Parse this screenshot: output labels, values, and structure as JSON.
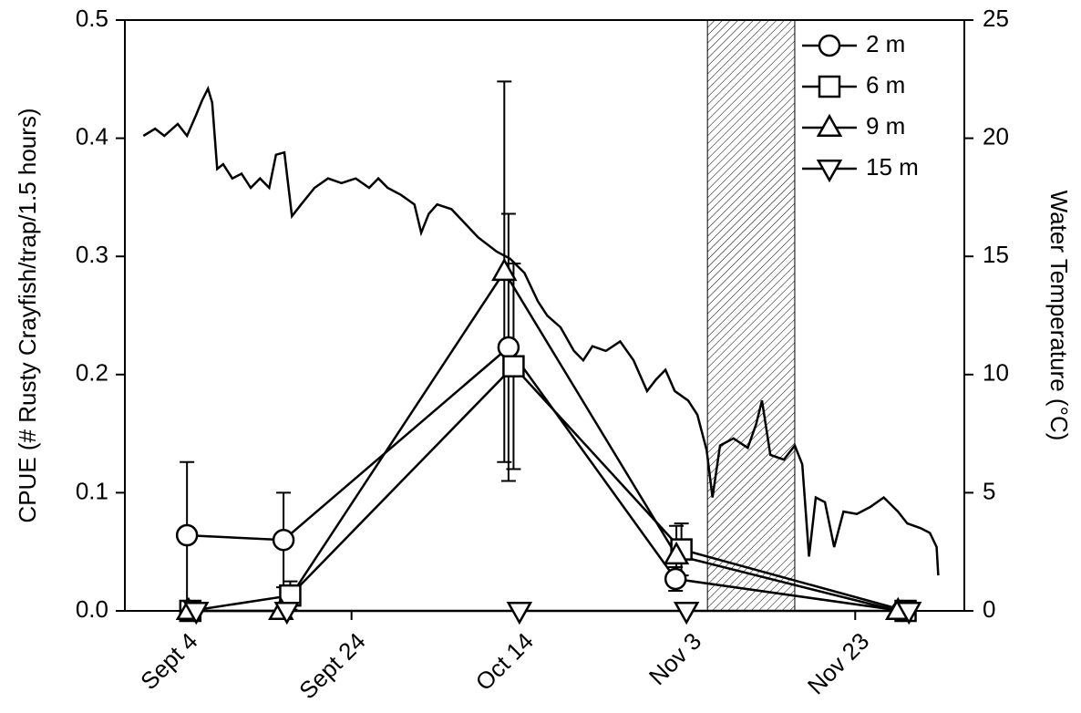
{
  "chart_data": {
    "type": "line",
    "y_label": "CPUE (# Rusty Crayfish/trap/1.5 hours)",
    "y2_label": "Water Temperature (°C)",
    "xlim": [
      240,
      340
    ],
    "xticks": [
      {
        "value": 247,
        "label": "Sept 4"
      },
      {
        "value": 267,
        "label": "Sept 24"
      },
      {
        "value": 287,
        "label": "Oct 14"
      },
      {
        "value": 307,
        "label": "Nov 3"
      },
      {
        "value": 327,
        "label": "Nov 23"
      }
    ],
    "ylim": [
      0,
      0.5
    ],
    "yticks": [
      {
        "value": 0,
        "label": "0.0"
      },
      0.1,
      0.2,
      0.3,
      0.4,
      0.5
    ],
    "y2lim": [
      0,
      25
    ],
    "y2ticks": [
      0,
      5,
      10,
      15,
      20,
      25
    ],
    "shaded_xrange": [
      309.4,
      319.8
    ],
    "legend": "upper right",
    "series": [
      {
        "name": "2 m",
        "marker": "circle",
        "color": "#000000",
        "x": [
          247.4,
          258.9,
          285.7,
          305.6,
          332.6
        ],
        "values": [
          0.064,
          0.06,
          0.223,
          0.027,
          0
        ],
        "errors": [
          0.062,
          0.04,
          0.113,
          0.01,
          null
        ]
      },
      {
        "name": "6 m",
        "marker": "square",
        "color": "#000000",
        "x": [
          247.8,
          259.7,
          286.3,
          306.3,
          333.0
        ],
        "values": [
          0,
          0.013,
          0.207,
          0.052,
          0
        ],
        "errors": [
          null,
          0.012,
          0.087,
          0.022,
          null
        ]
      },
      {
        "name": "9 m",
        "marker": "triangle-up",
        "color": "#000000",
        "x": [
          247.6,
          258.6,
          285.2,
          305.7,
          332.1
        ],
        "values": [
          0,
          0,
          0.287,
          0.047,
          0
        ],
        "errors": [
          null,
          null,
          0.161,
          0.025,
          null
        ]
      },
      {
        "name": "15 m",
        "marker": "triangle-down",
        "color": "#000000",
        "x": [
          248.5,
          259.3,
          287.0,
          306.9,
          333.4
        ],
        "values": [
          0,
          0,
          0,
          0,
          0
        ],
        "errors": [
          null,
          null,
          null,
          null,
          null
        ]
      }
    ],
    "temperature": {
      "axis": "y2",
      "color": "#000000",
      "x": [
        242.2,
        243.6,
        244.7,
        246.3,
        247.4,
        248.5,
        249.2,
        249.9,
        250.4,
        251.0,
        251.7,
        252.8,
        253.9,
        255.0,
        256.1,
        257.2,
        258.0,
        259.0,
        259.9,
        261.0,
        262.6,
        264.2,
        265.8,
        267.5,
        269.1,
        270.2,
        271.3,
        272.9,
        274.5,
        275.3,
        276.2,
        277.2,
        278.9,
        280.5,
        282.1,
        284.3,
        285.9,
        287.6,
        289.2,
        290.3,
        291.9,
        293.5,
        294.6,
        295.7,
        297.3,
        299.0,
        300.6,
        302.2,
        303.3,
        304.4,
        305.5,
        307.1,
        308.2,
        309.3,
        310.0,
        310.9,
        312.5,
        314.2,
        315.2,
        315.9,
        316.9,
        318.5,
        319.8,
        320.7,
        321.5,
        322.3,
        323.4,
        324.5,
        325.6,
        327.2,
        328.8,
        330.4,
        332.1,
        333.2,
        334.8,
        335.9,
        336.7,
        336.9
      ],
      "values": [
        20.1,
        20.4,
        20.1,
        20.6,
        20.1,
        21.0,
        21.6,
        22.1,
        21.5,
        18.7,
        18.9,
        18.3,
        18.5,
        17.9,
        18.3,
        17.9,
        19.3,
        19.4,
        16.7,
        17.2,
        17.9,
        18.3,
        18.1,
        18.3,
        17.9,
        18.3,
        17.9,
        17.6,
        17.2,
        16.0,
        16.8,
        17.2,
        17.0,
        16.4,
        15.8,
        15.2,
        14.9,
        14.3,
        13.1,
        12.5,
        12.0,
        11.0,
        10.6,
        11.2,
        11.0,
        11.4,
        10.6,
        9.3,
        9.8,
        10.2,
        9.3,
        8.9,
        8.3,
        6.8,
        4.8,
        7.0,
        7.3,
        6.9,
        7.9,
        8.9,
        6.6,
        6.4,
        7.0,
        6.2,
        2.3,
        4.8,
        4.6,
        2.7,
        4.2,
        4.1,
        4.4,
        4.8,
        4.2,
        3.7,
        3.5,
        3.3,
        2.7,
        1.5
      ]
    }
  }
}
